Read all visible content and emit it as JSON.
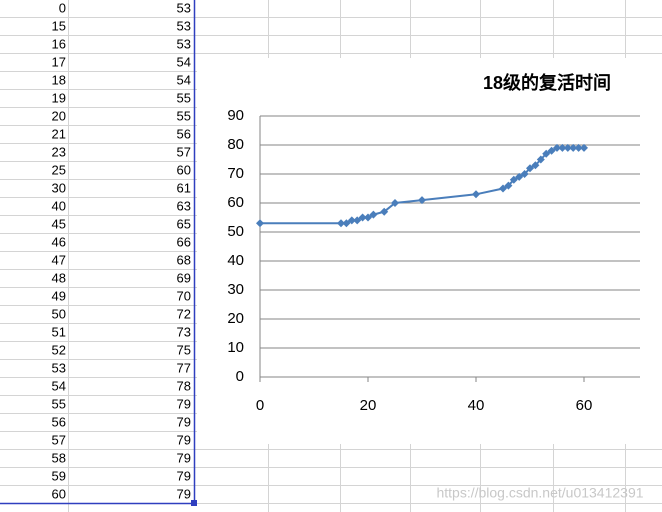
{
  "chart_data": {
    "type": "line",
    "title": "18级的复活时间",
    "x": [
      0,
      15,
      16,
      17,
      18,
      19,
      20,
      21,
      23,
      25,
      30,
      40,
      45,
      46,
      47,
      48,
      49,
      50,
      51,
      52,
      53,
      54,
      55,
      56,
      57,
      58,
      59,
      60
    ],
    "series": [
      {
        "color": "#4a7ebb",
        "values": [
          53,
          53,
          53,
          54,
          54,
          55,
          55,
          56,
          57,
          60,
          61,
          63,
          65,
          66,
          68,
          69,
          70,
          72,
          73,
          75,
          77,
          78,
          79,
          79,
          79,
          79,
          79,
          79
        ]
      }
    ],
    "xlim": [
      0,
      70
    ],
    "xticks": [
      0,
      20,
      40,
      60
    ],
    "ylim": [
      0,
      90
    ],
    "yticks": [
      0,
      10,
      20,
      30,
      40,
      50,
      60,
      70,
      80,
      90
    ],
    "grid": true
  },
  "watermark": "https://blog.csdn.net/u013412391"
}
